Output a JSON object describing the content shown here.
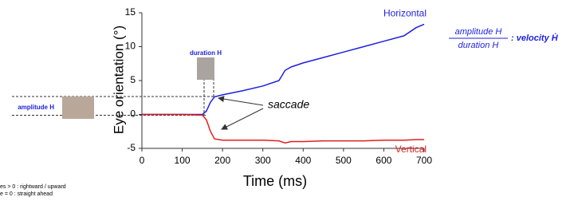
{
  "chart_data": {
    "type": "line",
    "xlabel": "Time (ms)",
    "ylabel": "Eye orientation (°)",
    "x": [
      0,
      100,
      150,
      160,
      170,
      180,
      200,
      250,
      300,
      340,
      355,
      370,
      400,
      450,
      500,
      550,
      600,
      650,
      680,
      700
    ],
    "series": [
      {
        "name": "Horizontal",
        "color": "#1f1fe0",
        "values": [
          0,
          0,
          0,
          0.5,
          1.8,
          2.6,
          2.9,
          3.5,
          4.2,
          5,
          6.5,
          7,
          7.6,
          8.4,
          9.2,
          10,
          10.8,
          11.6,
          12.8,
          13.3
        ]
      },
      {
        "name": "Vertical",
        "color": "#e01f1f",
        "values": [
          0,
          0,
          -0.1,
          -0.8,
          -2.5,
          -3.6,
          -3.8,
          -3.8,
          -3.8,
          -3.9,
          -4.2,
          -4.0,
          -4.0,
          -3.9,
          -3.9,
          -3.9,
          -3.8,
          -3.8,
          -3.7,
          -3.7
        ]
      }
    ],
    "xlim": [
      0,
      700
    ],
    "xticks": [
      0,
      100,
      200,
      300,
      400,
      500,
      600,
      700
    ],
    "ylim": [
      -5,
      15
    ],
    "yticks": [
      -5,
      0,
      5,
      10,
      15
    ],
    "grid": false,
    "annotations": {
      "saccade": "saccade",
      "duration": "duration H",
      "amplitude": "amplitude H",
      "formula_numerator": "amplitude H",
      "formula_denominator": "duration H",
      "formula_rest": ": velocity Ḣ",
      "note_1": "es > 0 : rightward / upward",
      "note_2": "e = 0 : straight ahead"
    }
  }
}
